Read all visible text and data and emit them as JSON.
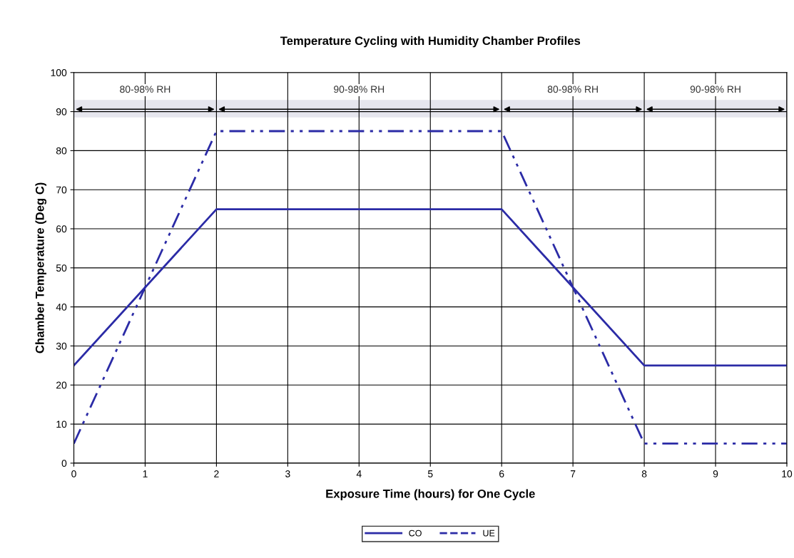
{
  "chart_data": {
    "type": "line",
    "title": "Temperature Cycling with Humidity Chamber Profiles",
    "xlabel": "Exposure Time (hours) for One Cycle",
    "ylabel": "Chamber Temperature (Deg C)",
    "x": [
      0,
      2,
      6,
      8,
      10
    ],
    "series": [
      {
        "name": "CO",
        "color": "#2b2ba6",
        "values": [
          25,
          65,
          65,
          25,
          25
        ],
        "line_style": "solid"
      },
      {
        "name": "UE",
        "color": "#2b2ba6",
        "values": [
          5,
          85,
          85,
          5,
          5
        ],
        "line_style": "dashed"
      }
    ],
    "bands": [
      {
        "axis": "x",
        "from": 0,
        "to": 2,
        "label": "80-98% RH",
        "color": "#e6e6ee"
      },
      {
        "axis": "x",
        "from": 2,
        "to": 6,
        "label": "90-98% RH",
        "color": "#e6e6ee"
      },
      {
        "axis": "x",
        "from": 6,
        "to": 8,
        "label": "80-98% RH",
        "color": "#e6e6ee"
      },
      {
        "axis": "x",
        "from": 8,
        "to": 10,
        "label": "90-98% RH",
        "color": "#e6e6ee"
      }
    ],
    "xlim": [
      0,
      10
    ],
    "xticks": [
      0,
      1,
      2,
      3,
      4,
      5,
      6,
      7,
      8,
      9,
      10
    ],
    "ylim": [
      0,
      100
    ],
    "yticks": [
      0,
      10,
      20,
      30,
      40,
      50,
      60,
      70,
      80,
      90,
      100
    ],
    "grid": true,
    "legend": "bottom"
  }
}
